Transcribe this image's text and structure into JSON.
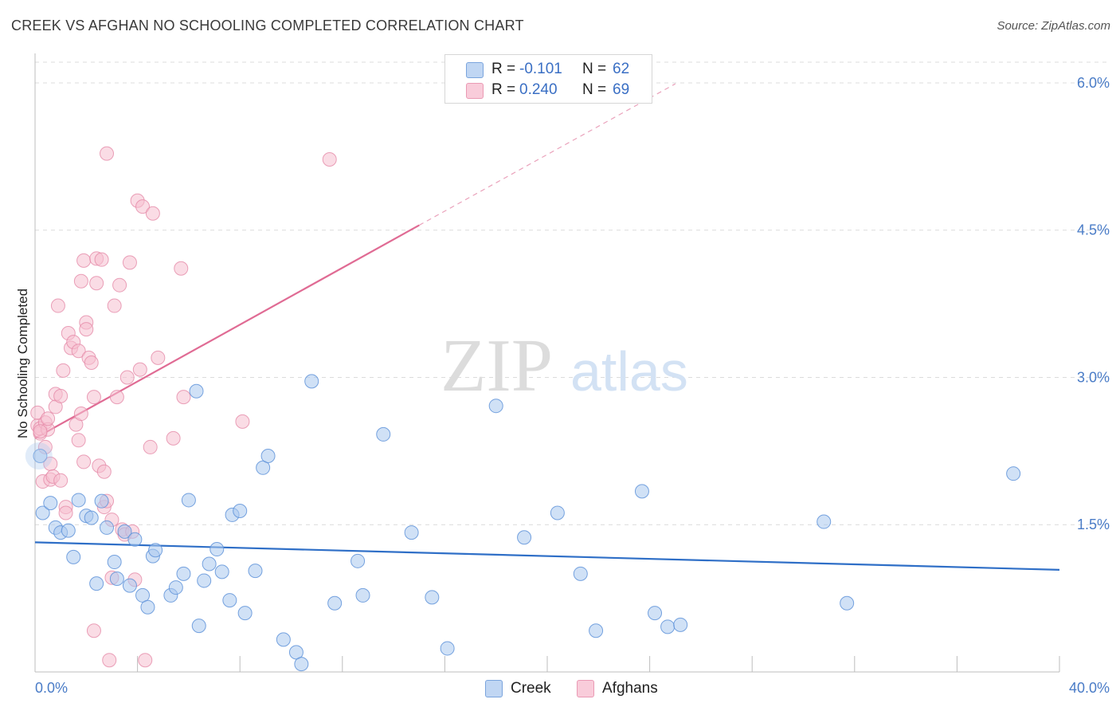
{
  "header": {
    "title": "CREEK VS AFGHAN NO SCHOOLING COMPLETED CORRELATION CHART",
    "source": "Source: ZipAtlas.com"
  },
  "watermark": {
    "zip": "ZIP",
    "atlas": "atlas"
  },
  "legend": {
    "rows": [
      {
        "r_label": "R =",
        "r_value": "-0.101",
        "n_label": "N =",
        "n_value": "62"
      },
      {
        "r_label": "R =",
        "r_value": "0.240",
        "n_label": "N =",
        "n_value": "69"
      }
    ],
    "bottom": [
      "Creek",
      "Afghans"
    ]
  },
  "colors": {
    "creek_fill": "#a9c8ef",
    "creek_stroke": "#5f93d9",
    "creek_line": "#2f6fc7",
    "afghan_fill": "#f6bfd0",
    "afghan_stroke": "#e58aa8",
    "afghan_line": "#e06b94",
    "tick": "#4a7cc7"
  },
  "chart_data": {
    "type": "scatter",
    "title": "CREEK VS AFGHAN NO SCHOOLING COMPLETED CORRELATION CHART",
    "xlabel": "",
    "ylabel": "No Schooling Completed",
    "xlim": [
      0,
      40
    ],
    "ylim": [
      0,
      6.3
    ],
    "x_tick_labels": [
      {
        "value": 0,
        "label": "0.0%"
      },
      {
        "value": 40,
        "label": "40.0%"
      }
    ],
    "y_tick_labels": [
      {
        "value": 1.5,
        "label": "1.5%"
      },
      {
        "value": 3.0,
        "label": "3.0%"
      },
      {
        "value": 4.5,
        "label": "4.5%"
      },
      {
        "value": 6.0,
        "label": "6.0%"
      }
    ],
    "series": [
      {
        "name": "Creek",
        "r": -0.101,
        "n": 62,
        "trend": {
          "x": [
            0,
            40
          ],
          "y": [
            1.32,
            1.04
          ]
        },
        "points": [
          [
            0.2,
            2.2
          ],
          [
            0.3,
            1.62
          ],
          [
            0.6,
            1.72
          ],
          [
            0.8,
            1.47
          ],
          [
            1.0,
            1.42
          ],
          [
            1.3,
            1.44
          ],
          [
            1.5,
            1.17
          ],
          [
            1.7,
            1.75
          ],
          [
            2.0,
            1.59
          ],
          [
            2.2,
            1.57
          ],
          [
            2.4,
            0.9
          ],
          [
            2.6,
            1.74
          ],
          [
            2.8,
            1.47
          ],
          [
            3.1,
            1.12
          ],
          [
            3.2,
            0.95
          ],
          [
            3.5,
            1.43
          ],
          [
            3.7,
            0.88
          ],
          [
            3.9,
            1.35
          ],
          [
            4.2,
            0.78
          ],
          [
            4.4,
            0.66
          ],
          [
            4.6,
            1.18
          ],
          [
            4.7,
            1.24
          ],
          [
            5.3,
            0.78
          ],
          [
            5.5,
            0.86
          ],
          [
            5.8,
            1.0
          ],
          [
            6.0,
            1.75
          ],
          [
            6.3,
            2.86
          ],
          [
            6.4,
            0.47
          ],
          [
            6.6,
            0.93
          ],
          [
            6.8,
            1.1
          ],
          [
            7.1,
            1.25
          ],
          [
            7.3,
            1.02
          ],
          [
            7.6,
            0.73
          ],
          [
            7.7,
            1.6
          ],
          [
            8.0,
            1.64
          ],
          [
            8.2,
            0.6
          ],
          [
            8.6,
            1.03
          ],
          [
            8.9,
            2.08
          ],
          [
            9.1,
            2.2
          ],
          [
            9.7,
            0.33
          ],
          [
            10.2,
            0.2
          ],
          [
            10.4,
            0.08
          ],
          [
            10.8,
            2.96
          ],
          [
            11.7,
            0.7
          ],
          [
            12.6,
            1.13
          ],
          [
            12.8,
            0.78
          ],
          [
            13.6,
            2.42
          ],
          [
            14.7,
            1.42
          ],
          [
            15.5,
            0.76
          ],
          [
            16.1,
            0.24
          ],
          [
            18.0,
            2.71
          ],
          [
            19.1,
            1.37
          ],
          [
            20.4,
            1.62
          ],
          [
            21.3,
            1.0
          ],
          [
            21.9,
            0.42
          ],
          [
            23.7,
            1.84
          ],
          [
            24.2,
            0.6
          ],
          [
            24.7,
            0.46
          ],
          [
            25.2,
            0.48
          ],
          [
            30.8,
            1.53
          ],
          [
            31.7,
            0.7
          ],
          [
            38.2,
            2.02
          ]
        ]
      },
      {
        "name": "Afghans",
        "r": 0.24,
        "n": 69,
        "trend": {
          "x": [
            0,
            15
          ],
          "y": [
            2.38,
            4.55
          ]
        },
        "trend_dashed": {
          "x": [
            15,
            25
          ],
          "y": [
            4.55,
            5.99
          ]
        },
        "points": [
          [
            0.1,
            2.51
          ],
          [
            0.1,
            2.64
          ],
          [
            0.2,
            2.43
          ],
          [
            0.2,
            2.48
          ],
          [
            0.3,
            1.94
          ],
          [
            0.4,
            2.29
          ],
          [
            0.4,
            2.54
          ],
          [
            0.5,
            2.47
          ],
          [
            0.6,
            2.12
          ],
          [
            0.6,
            1.96
          ],
          [
            0.7,
            1.99
          ],
          [
            0.8,
            2.7
          ],
          [
            0.8,
            2.83
          ],
          [
            0.9,
            3.73
          ],
          [
            1.0,
            2.81
          ],
          [
            1.1,
            3.07
          ],
          [
            1.2,
            1.68
          ],
          [
            1.2,
            1.62
          ],
          [
            1.3,
            3.45
          ],
          [
            1.4,
            3.3
          ],
          [
            1.5,
            3.36
          ],
          [
            1.6,
            2.52
          ],
          [
            1.7,
            3.27
          ],
          [
            1.7,
            2.36
          ],
          [
            1.8,
            2.63
          ],
          [
            1.8,
            3.98
          ],
          [
            1.9,
            2.14
          ],
          [
            1.9,
            4.19
          ],
          [
            2.0,
            3.56
          ],
          [
            2.0,
            3.49
          ],
          [
            2.1,
            3.2
          ],
          [
            2.2,
            3.15
          ],
          [
            2.3,
            2.8
          ],
          [
            2.3,
            0.42
          ],
          [
            2.4,
            3.96
          ],
          [
            2.4,
            4.21
          ],
          [
            2.5,
            2.1
          ],
          [
            2.6,
            4.2
          ],
          [
            2.7,
            1.68
          ],
          [
            2.7,
            2.04
          ],
          [
            2.8,
            1.74
          ],
          [
            2.8,
            5.28
          ],
          [
            2.9,
            0.12
          ],
          [
            3.0,
            0.96
          ],
          [
            3.0,
            1.55
          ],
          [
            3.1,
            3.73
          ],
          [
            3.2,
            2.8
          ],
          [
            3.3,
            3.94
          ],
          [
            3.4,
            1.45
          ],
          [
            3.5,
            1.4
          ],
          [
            3.6,
            3.0
          ],
          [
            3.7,
            4.17
          ],
          [
            3.8,
            1.43
          ],
          [
            3.9,
            0.94
          ],
          [
            4.0,
            4.8
          ],
          [
            4.1,
            3.08
          ],
          [
            4.2,
            4.74
          ],
          [
            4.3,
            0.12
          ],
          [
            4.5,
            2.29
          ],
          [
            4.6,
            4.67
          ],
          [
            4.8,
            3.2
          ],
          [
            5.4,
            2.38
          ],
          [
            5.7,
            4.11
          ],
          [
            5.8,
            2.8
          ],
          [
            8.1,
            2.55
          ],
          [
            11.5,
            5.22
          ],
          [
            0.5,
            2.58
          ],
          [
            1.0,
            1.95
          ],
          [
            0.2,
            2.45
          ]
        ]
      }
    ]
  }
}
